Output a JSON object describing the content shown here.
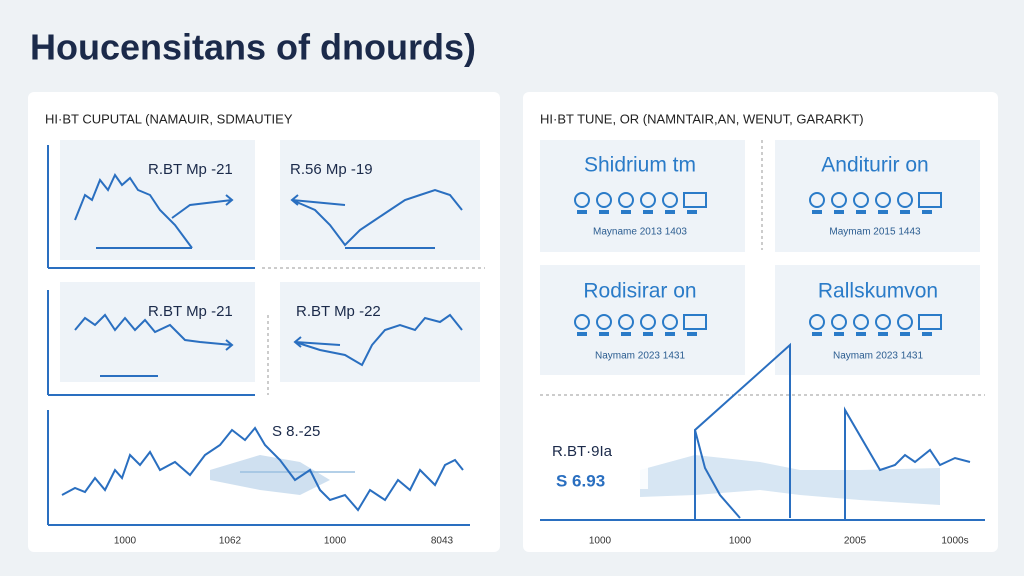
{
  "title": "Houcensitans of dnourds)",
  "left_panel": {
    "header": "HI·BT CUPUTAL (NAMAUIR, SDMAUTIEY",
    "cards": [
      {
        "label": "R.BT Mp -21"
      },
      {
        "label": "R.56 Mp -19"
      },
      {
        "label": "R.BT Mp -21"
      },
      {
        "label": "R.BT Mp -22"
      }
    ],
    "bottom_chart": {
      "label": "S 8.-25",
      "x_labels": [
        "1000",
        "1062",
        "1000",
        "8043"
      ]
    }
  },
  "right_panel": {
    "header": "HI·BT TUNE, OR (NAMNTAIR,AN, WENUT, GARARKT)",
    "tiles": [
      {
        "title": "Shidrium tm",
        "subtitle": "Mayname 2013 1403"
      },
      {
        "title": "Anditurir on",
        "subtitle": "Maymam 2015 1443"
      },
      {
        "title": "Rodisirar on",
        "subtitle": "Naymam 2023 1431"
      },
      {
        "title": "Rallskumvon",
        "subtitle": "Naymam 2023 1431"
      }
    ],
    "bottom_chart": {
      "label": "R.BT·9Ia",
      "value_label": "S 6.93",
      "x_labels": [
        "1000",
        "1000",
        "2005",
        "1000s"
      ]
    }
  }
}
